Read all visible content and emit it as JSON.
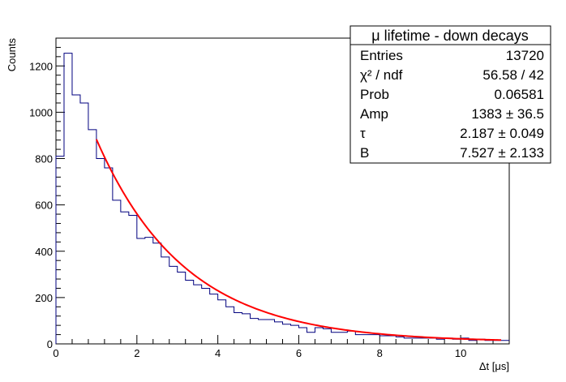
{
  "chart_data": {
    "type": "histogram",
    "title": "",
    "xlabel": "Δt [μs]",
    "ylabel": "Counts",
    "xlim": [
      0,
      11.2
    ],
    "ylim": [
      0,
      1320
    ],
    "x_ticks": [
      0,
      2,
      4,
      6,
      8,
      10
    ],
    "y_ticks": [
      0,
      200,
      400,
      600,
      800,
      1000,
      1200
    ],
    "grid": false,
    "legend": "none",
    "bin_width": 0.2,
    "histogram": {
      "name": "",
      "color": "#00007f",
      "bin_edges_start": 0.0,
      "values": [
        810,
        1255,
        1075,
        1040,
        925,
        800,
        760,
        620,
        570,
        555,
        455,
        460,
        435,
        375,
        335,
        310,
        275,
        255,
        240,
        215,
        190,
        160,
        135,
        130,
        110,
        105,
        105,
        95,
        85,
        80,
        70,
        50,
        70,
        65,
        50,
        50,
        55,
        40,
        40,
        40,
        35,
        35,
        30,
        25,
        25,
        25,
        25,
        20,
        25,
        20,
        25,
        15,
        20,
        15,
        15,
        15
      ]
    },
    "fit": {
      "color": "#ff0000",
      "x_start": 1.0,
      "x_end": 11.0,
      "model": "Amp * exp(-x / tau) + B"
    },
    "stats_box": {
      "title": "μ lifetime - down decays",
      "rows": [
        {
          "label": "Entries",
          "value": "13720"
        },
        {
          "label": "χ² / ndf",
          "value": "56.58 / 42"
        },
        {
          "label": "Prob",
          "value": "0.06581"
        },
        {
          "label": "Amp",
          "value": "1383 ± 36.5"
        },
        {
          "label": "τ",
          "value": "2.187 ± 0.049"
        },
        {
          "label": "B",
          "value": "7.527 ± 2.133"
        }
      ]
    }
  }
}
